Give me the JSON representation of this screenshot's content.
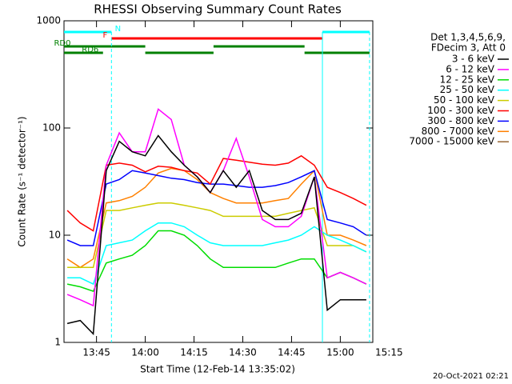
{
  "chart_data": {
    "type": "line",
    "title": "RHESSI Observing Summary Count Rates",
    "x_label": "Start Time (12-Feb-14 13:35:02)",
    "y_label": "Count Rate (s⁻¹ detector⁻¹)",
    "legend_header": [
      "Det 1,3,4,5,6,9,",
      "FDecim 3, Att 0"
    ],
    "footer": "20-Oct-2021 02:21",
    "log_y": true,
    "xlim": [
      815,
      910
    ],
    "xticks": [
      {
        "value": 825,
        "label": "13:45"
      },
      {
        "value": 840,
        "label": "14:00"
      },
      {
        "value": 855,
        "label": "14:15"
      },
      {
        "value": 870,
        "label": "14:30"
      },
      {
        "value": 885,
        "label": "14:45"
      },
      {
        "value": 900,
        "label": "15:00"
      },
      {
        "value": 915,
        "label": "15:15"
      }
    ],
    "ylim": [
      1,
      1000
    ],
    "yticks": [
      1,
      10,
      100,
      1000
    ],
    "flags": [
      {
        "label": "N",
        "color": "#00ffff",
        "intervals": [
          [
            815,
            829.6
          ],
          [
            894.5,
            909
          ]
        ]
      },
      {
        "label": "F",
        "color": "#ff0000",
        "intervals": [
          [
            829.6,
            894.5
          ]
        ]
      },
      {
        "label": "RD0",
        "color": "#008000",
        "intervals": [
          [
            815,
            840
          ],
          [
            861,
            889
          ]
        ]
      },
      {
        "label": "RD6",
        "color": "#008000",
        "intervals": [
          [
            815,
            827
          ],
          [
            840,
            861
          ],
          [
            889,
            909
          ]
        ]
      }
    ],
    "x": [
      816,
      820,
      824,
      828,
      832,
      836,
      840,
      844,
      848,
      852,
      856,
      860,
      864,
      868,
      872,
      876,
      880,
      884,
      888,
      892,
      896,
      900,
      904,
      908
    ],
    "series": [
      {
        "name": "3 - 6 keV",
        "color": "#000000",
        "values": [
          1.5,
          1.6,
          1.2,
          40,
          75,
          60,
          55,
          85,
          60,
          45,
          35,
          25,
          40,
          28,
          40,
          17,
          14,
          14,
          16,
          35,
          2,
          2.5,
          2.5,
          2.5
        ]
      },
      {
        "name": "6 - 12 keV",
        "color": "#ff00ff",
        "values": [
          2.8,
          2.5,
          2.2,
          45,
          90,
          60,
          60,
          150,
          120,
          45,
          35,
          25,
          40,
          80,
          35,
          14,
          12,
          12,
          15,
          35,
          4,
          4.5,
          4,
          3.5
        ]
      },
      {
        "name": "12 - 25 keV",
        "color": "#00dd00",
        "values": [
          3.5,
          3.3,
          3,
          5.5,
          6,
          6.5,
          8,
          11,
          11,
          10,
          8,
          6,
          5,
          5,
          5,
          5,
          5,
          5.5,
          6,
          6,
          4,
          4.5,
          4,
          3.5
        ]
      },
      {
        "name": "25 - 50 keV",
        "color": "#00ffff",
        "values": [
          4,
          4,
          3.5,
          8,
          8.5,
          9,
          11,
          13,
          13,
          12,
          10,
          8.5,
          8,
          8,
          8,
          8,
          8.5,
          9,
          10,
          12,
          10,
          9,
          8,
          7
        ]
      },
      {
        "name": "50 - 100 keV",
        "color": "#cccc00",
        "values": [
          5,
          5,
          5,
          17,
          17,
          18,
          19,
          20,
          20,
          19,
          18,
          17,
          15,
          15,
          15,
          15,
          15,
          16,
          17,
          18,
          8,
          8,
          8,
          7
        ]
      },
      {
        "name": "100 - 300 keV",
        "color": "#ff0000",
        "values": [
          17,
          13,
          11,
          45,
          47,
          45,
          39,
          44,
          43,
          40,
          38,
          30,
          52,
          50,
          48,
          46,
          45,
          47,
          55,
          45,
          28,
          25,
          22,
          19
        ]
      },
      {
        "name": "300 - 800 keV",
        "color": "#0000ff",
        "values": [
          9,
          8,
          8,
          30,
          33,
          40,
          38,
          36,
          34,
          33,
          31,
          30,
          30,
          29,
          28,
          28,
          29,
          31,
          35,
          40,
          14,
          13,
          12,
          10
        ]
      },
      {
        "name": "800 - 7000 keV",
        "color": "#ff8000",
        "values": [
          6,
          5,
          6,
          20,
          21,
          23,
          28,
          38,
          42,
          40,
          33,
          25,
          22,
          20,
          20,
          20,
          21,
          22,
          30,
          40,
          10,
          10,
          9,
          8
        ]
      },
      {
        "name": "7000 - 15000 keV",
        "color": "#996633",
        "values": [
          null,
          null,
          null,
          null,
          null,
          null,
          null,
          null,
          null,
          null,
          null,
          null,
          null,
          null,
          null,
          null,
          null,
          null,
          null,
          null,
          null,
          null,
          null,
          null
        ]
      }
    ]
  }
}
